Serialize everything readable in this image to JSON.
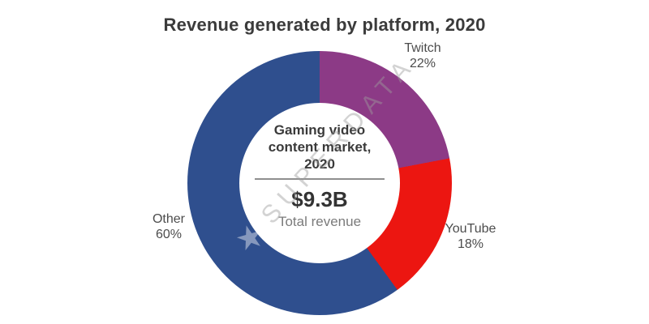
{
  "title": "Revenue generated by platform, 2020",
  "center": {
    "label": "Gaming video content market, 2020",
    "value": "$9.3B",
    "caption": "Total revenue"
  },
  "watermark": {
    "star": "★",
    "text": "SUPERDATA"
  },
  "colors": {
    "twitch": "#8C3A86",
    "youtube": "#EC1611",
    "other": "#2F4F8E",
    "title_text": "#3B3B3B",
    "label_text": "#4C4C4C",
    "caption_text": "#7B7B7B",
    "divider": "#8F8F8F",
    "background": "#FFFFFF"
  },
  "chart_data": {
    "type": "pie",
    "donut": true,
    "title": "Revenue generated by platform, 2020",
    "center_label": "Gaming video content market, 2020",
    "total_value": "$9.3B",
    "total_caption": "Total revenue",
    "start_angle_deg": 0,
    "direction": "clockwise",
    "legend_position": "outside-slice-labels",
    "slices": [
      {
        "label": "Twitch",
        "percent": 22,
        "percent_label": "22%",
        "color": "#8C3A86"
      },
      {
        "label": "YouTube",
        "percent": 18,
        "percent_label": "18%",
        "color": "#EC1611"
      },
      {
        "label": "Other",
        "percent": 60,
        "percent_label": "60%",
        "color": "#2F4F8E"
      }
    ]
  }
}
